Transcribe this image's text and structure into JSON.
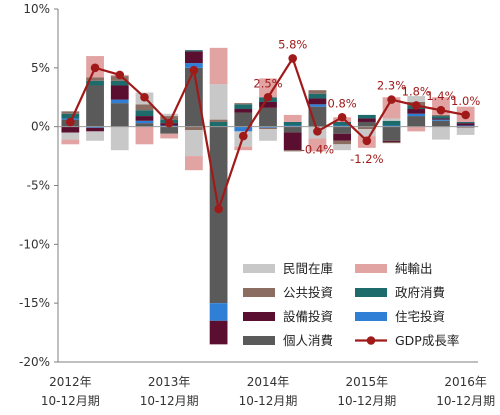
{
  "chart_data": {
    "type": "bar",
    "stacked": true,
    "categories": [
      "2012Q4",
      "2013Q1",
      "2013Q2",
      "2013Q3",
      "2013Q4",
      "2014Q1",
      "2014Q2",
      "2014Q3",
      "2014Q4",
      "2015Q1",
      "2015Q2",
      "2015Q3",
      "2015Q4",
      "2016Q1",
      "2016Q2",
      "2016Q3",
      "2016Q4"
    ],
    "x_tick_labels": [
      {
        "index": 0,
        "year": "2012年",
        "period": "10-12月期"
      },
      {
        "index": 4,
        "year": "2013年",
        "period": "10-12月期"
      },
      {
        "index": 8,
        "year": "2014年",
        "period": "10-12月期"
      },
      {
        "index": 12,
        "year": "2015年",
        "period": "10-12月期"
      },
      {
        "index": 16,
        "year": "2016年",
        "period": "10-12月期"
      }
    ],
    "ylim": [
      -20,
      10
    ],
    "yticks": [
      10,
      5,
      0,
      -5,
      -10,
      -15,
      -20
    ],
    "ytick_labels": [
      "10%",
      "5%",
      "0%",
      "-5%",
      "-10%",
      "-15%",
      "-20%"
    ],
    "grid": false,
    "legend_position": "bottom-right",
    "series": [
      {
        "key": "private_consumption",
        "name": "個人消費",
        "color": "#5a5a5a",
        "values": [
          0.6,
          3.5,
          2.0,
          0.3,
          -0.6,
          5.0,
          -15.0,
          1.2,
          1.6,
          -0.5,
          1.7,
          -0.6,
          0.4,
          -1.2,
          0.9,
          0.5,
          0.0
        ]
      },
      {
        "key": "residential",
        "name": "住宅投資",
        "color": "#2f7fd6",
        "values": [
          0.1,
          -0.1,
          0.3,
          0.2,
          0.1,
          0.4,
          -1.5,
          -0.4,
          -0.1,
          0.1,
          0.2,
          0.1,
          0.0,
          0.1,
          0.2,
          0.1,
          0.1
        ]
      },
      {
        "key": "business_investment",
        "name": "設備投資",
        "color": "#5a0f30",
        "values": [
          -0.5,
          -0.3,
          1.2,
          0.4,
          0.2,
          1.0,
          -2.0,
          0.3,
          0.5,
          -1.5,
          0.5,
          -0.6,
          0.3,
          -0.1,
          0.4,
          0.1,
          0.2
        ]
      },
      {
        "key": "government",
        "name": "政府消費",
        "color": "#1e6b6b",
        "values": [
          0.4,
          0.4,
          0.4,
          0.5,
          0.3,
          0.1,
          0.4,
          0.4,
          0.4,
          0.3,
          0.4,
          0.3,
          0.3,
          0.4,
          0.3,
          0.2,
          0.1
        ]
      },
      {
        "key": "public_investment",
        "name": "公共投資",
        "color": "#8b6d62",
        "values": [
          0.2,
          0.3,
          0.4,
          0.5,
          0.3,
          -0.3,
          0.2,
          0.1,
          -0.1,
          -0.1,
          0.3,
          -0.3,
          -0.2,
          -0.1,
          0.3,
          0.1,
          -0.1
        ]
      },
      {
        "key": "inventory",
        "name": "民間在庫",
        "color": "#c8c8c8",
        "values": [
          -0.6,
          -0.8,
          -2.0,
          1.0,
          0.2,
          -2.2,
          3.0,
          -1.3,
          -1.0,
          0.0,
          -1.0,
          -0.5,
          -0.6,
          0.2,
          0.5,
          -1.1,
          -0.6
        ]
      },
      {
        "key": "net_exports",
        "name": "純輸出",
        "color": "#e2a3a3",
        "values": [
          -0.4,
          1.8,
          0.1,
          -1.5,
          -0.4,
          -1.2,
          3.1,
          -0.3,
          1.6,
          0.6,
          -1.1,
          0.4,
          -1.0,
          1.8,
          -0.4,
          1.5,
          1.3
        ]
      }
    ],
    "gdp_line": {
      "name": "GDP成長率",
      "color": "#a11a1a",
      "values": [
        0.4,
        5.0,
        4.4,
        2.5,
        0.3,
        4.8,
        -7.0,
        -0.8,
        2.5,
        5.8,
        -0.4,
        0.8,
        -1.2,
        2.3,
        1.8,
        1.4,
        1.0
      ]
    },
    "data_labels": [
      {
        "index": 8,
        "text": "2.5%"
      },
      {
        "index": 9,
        "text": "5.8%"
      },
      {
        "index": 10,
        "text": "-0.4%"
      },
      {
        "index": 11,
        "text": "0.8%"
      },
      {
        "index": 12,
        "text": "-1.2%"
      },
      {
        "index": 13,
        "text": "2.3%"
      },
      {
        "index": 14,
        "text": "1.8%"
      },
      {
        "index": 15,
        "text": "1.4%"
      },
      {
        "index": 16,
        "text": "1.0%"
      }
    ],
    "legend_entries": [
      {
        "key": "inventory",
        "label": "民間在庫",
        "marker": "bar"
      },
      {
        "key": "net_exports",
        "label": "純輸出",
        "marker": "bar"
      },
      {
        "key": "public_investment",
        "label": "公共投資",
        "marker": "bar"
      },
      {
        "key": "government",
        "label": "政府消費",
        "marker": "bar"
      },
      {
        "key": "business_investment",
        "label": "設備投資",
        "marker": "bar"
      },
      {
        "key": "residential",
        "label": "住宅投資",
        "marker": "bar"
      },
      {
        "key": "private_consumption",
        "label": "個人消費",
        "marker": "bar"
      },
      {
        "key": "gdp_line",
        "label": "GDP成長率",
        "marker": "line"
      }
    ]
  }
}
